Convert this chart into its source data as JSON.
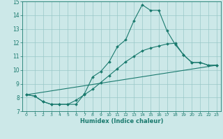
{
  "bg_color": "#cce8e8",
  "line_color": "#1a7a6e",
  "grid_color": "#99c8c8",
  "xlabel": "Humidex (Indice chaleur)",
  "xlim": [
    -0.5,
    23.5
  ],
  "ylim": [
    7,
    15
  ],
  "yticks": [
    7,
    8,
    9,
    10,
    11,
    12,
    13,
    14,
    15
  ],
  "xticks": [
    0,
    1,
    2,
    3,
    4,
    5,
    6,
    7,
    8,
    9,
    10,
    11,
    12,
    13,
    14,
    15,
    16,
    17,
    18,
    19,
    20,
    21,
    22,
    23
  ],
  "line1_x": [
    0,
    1,
    2,
    3,
    4,
    5,
    6,
    7,
    8,
    9,
    10,
    11,
    12,
    13,
    14,
    15,
    16,
    17,
    18,
    19,
    20,
    21,
    22,
    23
  ],
  "line1_y": [
    8.2,
    8.1,
    7.7,
    7.5,
    7.5,
    7.5,
    7.5,
    8.25,
    9.5,
    9.9,
    10.6,
    11.7,
    12.2,
    13.6,
    14.75,
    14.35,
    14.35,
    12.85,
    11.85,
    11.1,
    10.55,
    10.55,
    10.35,
    10.35
  ],
  "line2_x": [
    0,
    1,
    2,
    3,
    4,
    5,
    6,
    7,
    8,
    9,
    10,
    11,
    12,
    13,
    14,
    15,
    16,
    17,
    18,
    19,
    20,
    21,
    22,
    23
  ],
  "line2_y": [
    8.2,
    8.1,
    7.7,
    7.5,
    7.5,
    7.5,
    7.8,
    8.2,
    8.6,
    9.1,
    9.6,
    10.1,
    10.6,
    11.0,
    11.4,
    11.6,
    11.75,
    11.9,
    11.95,
    11.1,
    10.55,
    10.55,
    10.35,
    10.35
  ],
  "line3_x": [
    0,
    23
  ],
  "line3_y": [
    8.2,
    10.35
  ],
  "figsize": [
    3.2,
    2.0
  ],
  "dpi": 100
}
